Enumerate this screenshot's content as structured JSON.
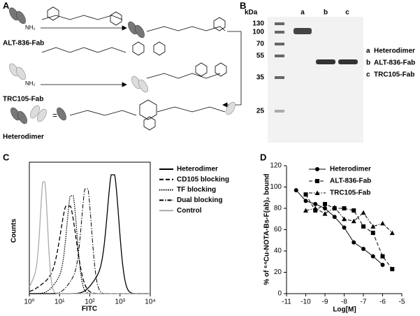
{
  "panel_letters": [
    "A",
    "B",
    "C",
    "D"
  ],
  "panel_a": {
    "labels": [
      "ALT-836-Fab",
      "TRC105-Fab",
      "Heterodimer"
    ],
    "amine": "NH₂",
    "equals": "="
  },
  "panel_b": {
    "unit": "kDa",
    "markers": [
      "130",
      "100",
      "70",
      "55",
      "35",
      "25"
    ],
    "lanes": [
      "a",
      "b",
      "c"
    ],
    "legend": [
      {
        "lane": "a",
        "name": "Heterodimer"
      },
      {
        "lane": "b",
        "name": "ALT-836-Fab"
      },
      {
        "lane": "c",
        "name": "TRC105-Fab"
      }
    ]
  },
  "panel_c": {
    "xlabel": "FITC",
    "ylabel": "Counts",
    "log_x": true,
    "xlim": [
      1,
      10000
    ],
    "xticks": [
      {
        "value": 1,
        "label": "10⁰"
      },
      {
        "value": 10,
        "label": "10¹"
      },
      {
        "value": 100,
        "label": "10²"
      },
      {
        "value": 1000,
        "label": "10³"
      },
      {
        "value": 10000,
        "label": "10⁴"
      }
    ],
    "legend": [
      "Heterodimer",
      "CD105 blocking",
      "TF blocking",
      "Dual blocking",
      "Control"
    ]
  },
  "chart_data": {
    "type": "line",
    "xlabel": "Log[M]",
    "ylabel": "% of ⁶⁴Cu-NOTA-Bs-F(ab)₂ bound",
    "xlim": [
      -11,
      -5
    ],
    "ylim": [
      0,
      120
    ],
    "xticks": [
      -11,
      -10,
      -9,
      -8,
      -7,
      -6,
      -5
    ],
    "yticks": [
      0,
      20,
      40,
      60,
      80,
      100,
      120
    ],
    "series": [
      {
        "name": "Heterodimer",
        "color": "#000000",
        "marker": "circle",
        "dash": "solid",
        "x": [
          -10.5,
          -10,
          -9.5,
          -9,
          -8.5,
          -8,
          -7.5,
          -7,
          -6.5,
          -6
        ],
        "values": [
          97,
          87,
          84,
          80,
          72,
          62,
          48,
          42,
          35,
          27
        ]
      },
      {
        "name": "ALT-836-Fab",
        "color": "#000000",
        "marker": "square",
        "dash": "dashed",
        "x": [
          -10,
          -9.5,
          -9,
          -8.5,
          -8,
          -7.5,
          -7,
          -6.5,
          -6,
          -5.5
        ],
        "values": [
          93,
          78,
          84,
          80,
          80,
          78,
          63,
          57,
          35,
          23
        ]
      },
      {
        "name": "TRC105-Fab",
        "color": "#000000",
        "marker": "triangle",
        "dash": "dashdot",
        "x": [
          -10,
          -9.5,
          -9,
          -8.5,
          -8,
          -7.5,
          -7,
          -6.5,
          -6,
          -5.5
        ],
        "values": [
          78,
          80,
          75,
          81,
          70,
          68,
          76,
          63,
          66,
          57
        ]
      }
    ]
  }
}
